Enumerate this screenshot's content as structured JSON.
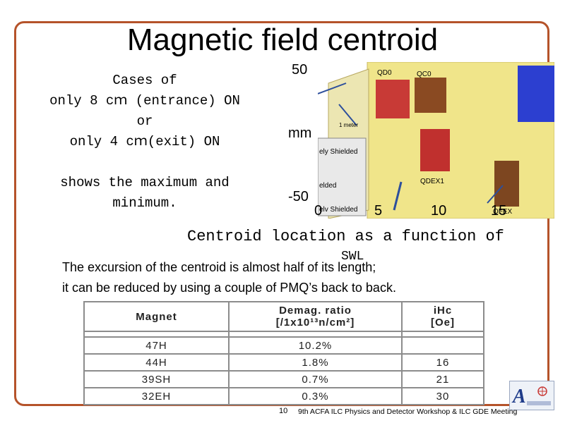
{
  "title": "Magnetic field centroid",
  "case_text": {
    "line1": "Cases of",
    "line2": "only 8 cｍ (entrance) ON",
    "line3": "or",
    "line4": "only 4 cｍ(exit) ON"
  },
  "shows_text": {
    "line1": "shows the maximum and",
    "line2": "minimum."
  },
  "plot": {
    "y_top": "50",
    "y_unit": "mm",
    "y_bottom": "-50",
    "x_ticks": [
      "0",
      "5",
      "10",
      "15"
    ],
    "labels": {
      "qd0": "QD0",
      "qc0": "QC0",
      "qdex1": "QDEX1",
      "qfex": "QFEX",
      "meter": "1 meter",
      "ely_shielded": "ely Shielded",
      "elded": "elded",
      "elv_shielded": "elv Shielded"
    },
    "colors": {
      "panel": "#f0e58a",
      "red_magnet": "#c83a36",
      "brown_magnet": "#8a4a22",
      "blue_magnet": "#2c3fd0",
      "arrow": "#2d4f9c"
    }
  },
  "caption": {
    "line1": "Centroid location as a function of",
    "line2": "SWL"
  },
  "body_text": {
    "line1": "The excursion of the centroid is almost half of its length;",
    "line2": "it can be reduced by using a couple of PMQ’s back to back."
  },
  "table": {
    "headers": [
      [
        "Magnet",
        ""
      ],
      [
        "Demag. ratio",
        "[/1x10¹³n/cm²]"
      ],
      [
        "iHc",
        "[Oe]"
      ]
    ],
    "rows": [
      [
        "47H",
        "10.2%",
        ""
      ],
      [
        "44H",
        "1.8%",
        "16"
      ],
      [
        "39SH",
        "0.7%",
        "21"
      ],
      [
        "32EH",
        "0.3%",
        "30"
      ]
    ]
  },
  "footer": {
    "page_number": "10",
    "text": "9th ACFA ILC Physics and Detector Workshop & ILC GDE Meeting"
  },
  "colors": {
    "frame": "#b5532a"
  }
}
